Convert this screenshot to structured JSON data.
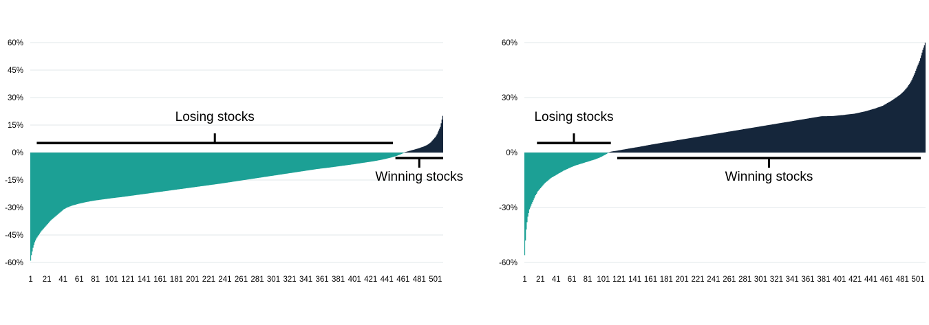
{
  "page": {
    "background": "#ffffff"
  },
  "colors": {
    "losing_stocks": "#1CA095",
    "winning_stocks": "#15263B",
    "gridline": "#E6ECEE",
    "axis_text": "#000000",
    "annotation": "#000000"
  },
  "chart_data": [
    {
      "type": "area",
      "title": "",
      "xlabel": "",
      "ylabel": "",
      "n_stocks": 510,
      "ylim": [
        -60,
        60
      ],
      "grid": true,
      "legend": "none",
      "y_ticks": [
        "60%",
        "45%",
        "30%",
        "15%",
        "0%",
        "-15%",
        "-30%",
        "-45%",
        "-60%"
      ],
      "x_ticks": [
        "1",
        "21",
        "41",
        "61",
        "81",
        "101",
        "121",
        "141",
        "161",
        "181",
        "201",
        "221",
        "241",
        "261",
        "281",
        "301",
        "321",
        "341",
        "361",
        "381",
        "401",
        "421",
        "441",
        "461",
        "481",
        "501"
      ],
      "series": [
        {
          "name": "Losing stocks",
          "color": "#1CA095",
          "sign": "negative"
        },
        {
          "name": "Winning stocks",
          "color": "#15263B",
          "sign": "positive"
        }
      ],
      "profile": [
        [
          1,
          -59
        ],
        [
          2,
          -56
        ],
        [
          3,
          -54
        ],
        [
          4,
          -52
        ],
        [
          6,
          -49
        ],
        [
          8,
          -47
        ],
        [
          11,
          -45
        ],
        [
          14,
          -43
        ],
        [
          17,
          -41.5
        ],
        [
          20,
          -40
        ],
        [
          23,
          -38.5
        ],
        [
          26,
          -37
        ],
        [
          30,
          -35.5
        ],
        [
          34,
          -34
        ],
        [
          38,
          -32.5
        ],
        [
          42,
          -31
        ],
        [
          46,
          -30
        ],
        [
          52,
          -29
        ],
        [
          60,
          -28
        ],
        [
          70,
          -27
        ],
        [
          80,
          -26.2
        ],
        [
          90,
          -25.6
        ],
        [
          100,
          -25
        ],
        [
          115,
          -24.2
        ],
        [
          130,
          -23.3
        ],
        [
          145,
          -22.4
        ],
        [
          160,
          -21.5
        ],
        [
          175,
          -20.6
        ],
        [
          190,
          -19.7
        ],
        [
          205,
          -18.8
        ],
        [
          220,
          -17.9
        ],
        [
          235,
          -17
        ],
        [
          250,
          -16
        ],
        [
          265,
          -15
        ],
        [
          280,
          -14
        ],
        [
          295,
          -13
        ],
        [
          310,
          -12
        ],
        [
          325,
          -11
        ],
        [
          340,
          -10
        ],
        [
          355,
          -9
        ],
        [
          370,
          -8.2
        ],
        [
          385,
          -7.3
        ],
        [
          400,
          -6.4
        ],
        [
          412,
          -5.6
        ],
        [
          424,
          -4.8
        ],
        [
          434,
          -4
        ],
        [
          444,
          -3
        ],
        [
          452,
          -2
        ],
        [
          458,
          -1
        ],
        [
          462,
          -0.2
        ],
        [
          463,
          0.2
        ],
        [
          468,
          0.8
        ],
        [
          474,
          1.5
        ],
        [
          480,
          2.3
        ],
        [
          486,
          3.2
        ],
        [
          491,
          4.2
        ],
        [
          495,
          5.5
        ],
        [
          498,
          7
        ],
        [
          501,
          8.5
        ],
        [
          503,
          10
        ],
        [
          505,
          12
        ],
        [
          507,
          14
        ],
        [
          508,
          16
        ],
        [
          509,
          18
        ],
        [
          510,
          20
        ]
      ],
      "annotations": [
        {
          "label": "Losing stocks",
          "from_stock": 9,
          "to_stock": 448,
          "line_value": 5.2,
          "side": "above"
        },
        {
          "label": "Winning stocks",
          "from_stock": 452,
          "to_stock": 510,
          "line_value": -3,
          "side": "below"
        }
      ]
    },
    {
      "type": "area",
      "title": "",
      "xlabel": "",
      "ylabel": "",
      "n_stocks": 510,
      "ylim": [
        -60,
        60
      ],
      "grid": true,
      "legend": "none",
      "y_ticks": [
        "60%",
        "30%",
        "0%",
        "-30%",
        "-60%"
      ],
      "x_ticks": [
        "1",
        "21",
        "41",
        "61",
        "81",
        "101",
        "121",
        "141",
        "161",
        "181",
        "201",
        "221",
        "241",
        "261",
        "281",
        "301",
        "321",
        "341",
        "361",
        "381",
        "401",
        "421",
        "441",
        "461",
        "481",
        "501"
      ],
      "series": [
        {
          "name": "Losing stocks",
          "color": "#1CA095",
          "sign": "negative"
        },
        {
          "name": "Winning stocks",
          "color": "#15263B",
          "sign": "positive"
        }
      ],
      "profile": [
        [
          1,
          -56
        ],
        [
          2,
          -48
        ],
        [
          3,
          -42
        ],
        [
          4,
          -38
        ],
        [
          5,
          -35
        ],
        [
          6,
          -33
        ],
        [
          7,
          -31
        ],
        [
          8,
          -30
        ],
        [
          10,
          -28
        ],
        [
          12,
          -26
        ],
        [
          14,
          -24
        ],
        [
          16,
          -22.5
        ],
        [
          18,
          -21
        ],
        [
          21,
          -19.5
        ],
        [
          24,
          -18
        ],
        [
          27,
          -16.5
        ],
        [
          30,
          -15.5
        ],
        [
          34,
          -14
        ],
        [
          38,
          -13
        ],
        [
          42,
          -12
        ],
        [
          46,
          -11
        ],
        [
          50,
          -10
        ],
        [
          55,
          -9
        ],
        [
          60,
          -8
        ],
        [
          66,
          -7
        ],
        [
          72,
          -6.2
        ],
        [
          78,
          -5.4
        ],
        [
          84,
          -4.6
        ],
        [
          90,
          -3.8
        ],
        [
          95,
          -3
        ],
        [
          99,
          -2.2
        ],
        [
          102,
          -1.5
        ],
        [
          105,
          -0.8
        ],
        [
          107,
          -0.2
        ],
        [
          108,
          0.2
        ],
        [
          112,
          0.6
        ],
        [
          118,
          1
        ],
        [
          126,
          1.6
        ],
        [
          135,
          2.3
        ],
        [
          145,
          3
        ],
        [
          155,
          3.8
        ],
        [
          168,
          4.8
        ],
        [
          182,
          5.8
        ],
        [
          196,
          6.8
        ],
        [
          210,
          7.8
        ],
        [
          224,
          8.8
        ],
        [
          238,
          9.8
        ],
        [
          252,
          10.8
        ],
        [
          266,
          11.8
        ],
        [
          280,
          12.8
        ],
        [
          294,
          13.8
        ],
        [
          308,
          14.8
        ],
        [
          322,
          15.8
        ],
        [
          336,
          16.8
        ],
        [
          350,
          17.8
        ],
        [
          364,
          18.8
        ],
        [
          378,
          19.8
        ],
        [
          392,
          19.9
        ],
        [
          406,
          20.5
        ],
        [
          420,
          21.2
        ],
        [
          434,
          22.5
        ],
        [
          446,
          24
        ],
        [
          456,
          25.5
        ],
        [
          462,
          27
        ],
        [
          468,
          28.5
        ],
        [
          473,
          30
        ],
        [
          478,
          31.5
        ],
        [
          483,
          33.5
        ],
        [
          487,
          35.5
        ],
        [
          491,
          38
        ],
        [
          494,
          40.5
        ],
        [
          497,
          43.5
        ],
        [
          500,
          47
        ],
        [
          503,
          50
        ],
        [
          505,
          53
        ],
        [
          507,
          56
        ],
        [
          509,
          58.5
        ],
        [
          510,
          60
        ]
      ],
      "annotations": [
        {
          "label": "Losing stocks",
          "from_stock": 17,
          "to_stock": 110,
          "line_value": 5.2,
          "side": "above"
        },
        {
          "label": "Winning stocks",
          "from_stock": 119,
          "to_stock": 504,
          "line_value": -3,
          "side": "below"
        }
      ]
    }
  ]
}
